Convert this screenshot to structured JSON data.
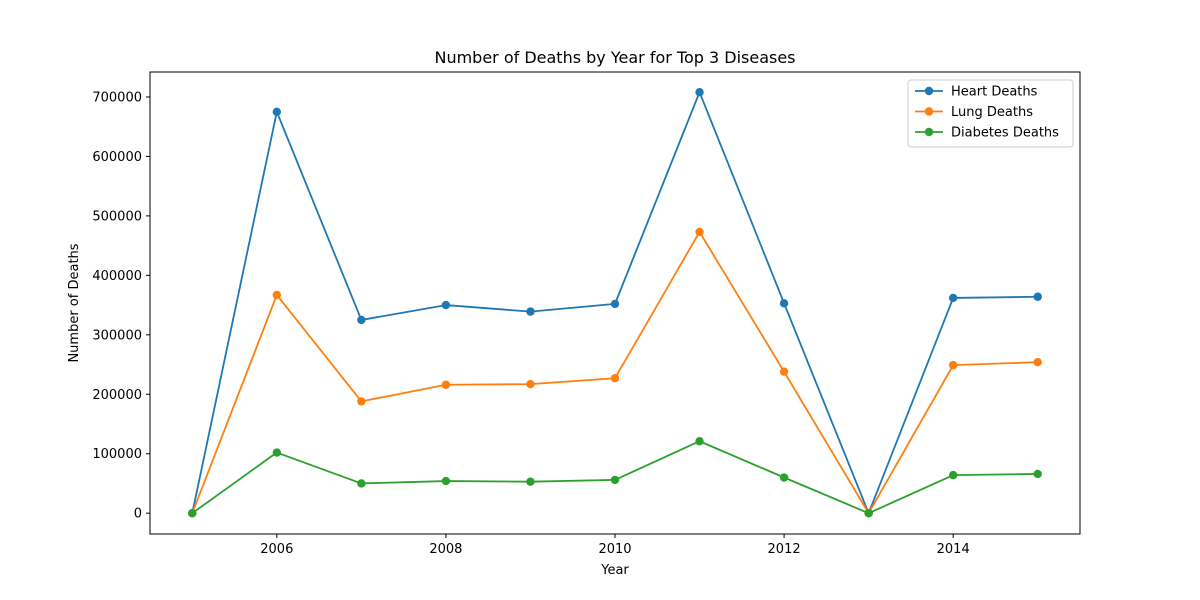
{
  "chart_data": {
    "type": "line",
    "title": "Number of Deaths by Year for Top 3 Diseases",
    "xlabel": "Year",
    "ylabel": "Number of Deaths",
    "x": [
      2005,
      2006,
      2007,
      2008,
      2009,
      2010,
      2011,
      2012,
      2013,
      2014,
      2015
    ],
    "xlim": [
      2004.5,
      2015.5
    ],
    "ylim": [
      -35000,
      742000
    ],
    "xticks": [
      2006,
      2008,
      2010,
      2012,
      2014
    ],
    "yticks": [
      0,
      100000,
      200000,
      300000,
      400000,
      500000,
      600000,
      700000
    ],
    "grid": false,
    "legend_position": "top-right",
    "series": [
      {
        "name": "Heart Deaths",
        "color": "#1f77b4",
        "values": [
          0,
          675000,
          325000,
          350000,
          339000,
          352000,
          708000,
          353000,
          0,
          362000,
          364000
        ]
      },
      {
        "name": "Lung Deaths",
        "color": "#ff7f0e",
        "values": [
          0,
          367000,
          188000,
          216000,
          217000,
          227000,
          473000,
          238000,
          0,
          249000,
          254000
        ]
      },
      {
        "name": "Diabetes Deaths",
        "color": "#2ca02c",
        "values": [
          0,
          102000,
          50000,
          54000,
          53000,
          56000,
          121000,
          60000,
          0,
          64000,
          66000
        ]
      }
    ]
  }
}
